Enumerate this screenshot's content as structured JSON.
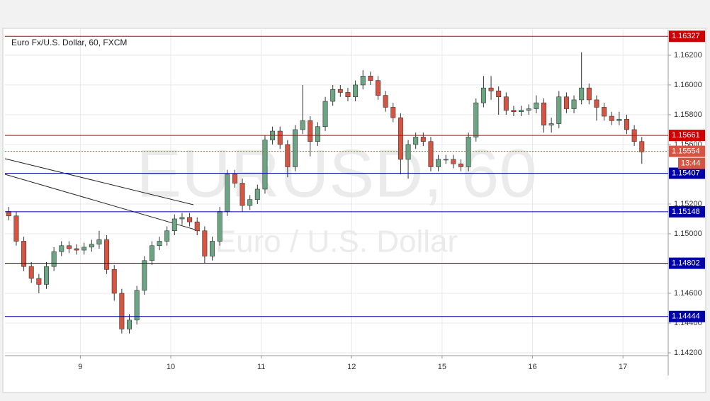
{
  "chart_data": {
    "type": "candlestick",
    "title": "Euro Fx/U.S. Dollar, 60, FXCM",
    "watermark": "EURUSD, 60",
    "watermark_subtitle": "Euro / U.S. Dollar",
    "x": [
      1,
      3,
      5,
      7,
      9,
      11,
      13,
      15,
      17,
      19,
      21,
      23,
      25,
      27,
      29,
      31,
      33,
      35,
      37,
      39,
      41,
      43,
      45,
      47,
      49,
      51,
      53,
      55,
      57,
      59,
      61,
      63,
      65,
      67,
      69,
      71,
      73,
      75,
      77,
      79,
      81,
      83,
      85,
      87,
      89,
      91,
      93,
      95,
      97,
      99,
      101,
      103,
      105,
      107,
      109,
      111,
      113,
      115,
      117,
      119,
      121,
      123,
      125,
      127,
      129,
      131,
      133,
      135,
      137,
      139,
      141,
      143,
      145,
      147,
      149,
      151,
      153,
      155,
      157,
      159,
      161,
      163,
      165,
      167,
      169
    ],
    "open": [
      1.1515,
      1.1512,
      1.1495,
      1.1478,
      1.147,
      1.1466,
      1.1478,
      1.1488,
      1.1492,
      1.149,
      1.1489,
      1.1491,
      1.1493,
      1.1496,
      1.1476,
      1.146,
      1.1436,
      1.1442,
      1.1462,
      1.1482,
      1.1492,
      1.1495,
      1.1502,
      1.151,
      1.1511,
      1.1508,
      1.1502,
      1.1485,
      1.1495,
      1.1515,
      1.154,
      1.1534,
      1.1519,
      1.1523,
      1.153,
      1.1563,
      1.1569,
      1.156,
      1.1545,
      1.157,
      1.1576,
      1.1562,
      1.1572,
      1.1589,
      1.1597,
      1.1595,
      1.1592,
      1.16,
      1.1606,
      1.1603,
      1.1593,
      1.1585,
      1.1578,
      1.155,
      1.156,
      1.1565,
      1.1562,
      1.1545,
      1.155,
      1.155,
      1.1547,
      1.1545,
      1.1565,
      1.1588,
      1.1598,
      1.1596,
      1.1592,
      1.1583,
      1.1582,
      1.1583,
      1.1584,
      1.1588,
      1.1573,
      1.1574,
      1.1592,
      1.1584,
      1.159,
      1.1598,
      1.159,
      1.1585,
      1.1579,
      1.1576,
      1.1577,
      1.157,
      1.1562
    ],
    "high": [
      1.1518,
      1.1515,
      1.1498,
      1.1481,
      1.1473,
      1.1481,
      1.1491,
      1.1495,
      1.1495,
      1.1493,
      1.1494,
      1.1496,
      1.1502,
      1.1499,
      1.1479,
      1.1463,
      1.1446,
      1.1465,
      1.1485,
      1.1495,
      1.1498,
      1.1505,
      1.1513,
      1.1514,
      1.1514,
      1.1511,
      1.1505,
      1.1498,
      1.1518,
      1.1543,
      1.1543,
      1.1537,
      1.1526,
      1.1533,
      1.1566,
      1.1572,
      1.1572,
      1.1563,
      1.1573,
      1.16,
      1.1579,
      1.1575,
      1.1592,
      1.16,
      1.16,
      1.1598,
      1.1603,
      1.161,
      1.1609,
      1.1606,
      1.1596,
      1.1588,
      1.1581,
      1.1563,
      1.1568,
      1.1568,
      1.1565,
      1.1553,
      1.1553,
      1.1553,
      1.155,
      1.1568,
      1.1591,
      1.1606,
      1.1606,
      1.1599,
      1.1595,
      1.1586,
      1.1586,
      1.1587,
      1.1593,
      1.1591,
      1.1578,
      1.1596,
      1.1595,
      1.1593,
      1.1622,
      1.1601,
      1.1593,
      1.1588,
      1.1582,
      1.1582,
      1.158,
      1.1573,
      1.1565
    ],
    "low": [
      1.1509,
      1.1492,
      1.1475,
      1.1467,
      1.146,
      1.1463,
      1.1475,
      1.1485,
      1.1487,
      1.1486,
      1.1486,
      1.1488,
      1.149,
      1.1473,
      1.1455,
      1.1433,
      1.1433,
      1.1439,
      1.1459,
      1.1479,
      1.1489,
      1.1492,
      1.1499,
      1.1506,
      1.1505,
      1.1499,
      1.148,
      1.1482,
      1.1492,
      1.1512,
      1.1531,
      1.1515,
      1.1516,
      1.152,
      1.1527,
      1.156,
      1.1557,
      1.1538,
      1.1542,
      1.1567,
      1.1552,
      1.1559,
      1.1569,
      1.1586,
      1.1592,
      1.1589,
      1.1589,
      1.1597,
      1.16,
      1.159,
      1.1582,
      1.1575,
      1.154,
      1.1537,
      1.1557,
      1.1559,
      1.1542,
      1.1542,
      1.1547,
      1.1544,
      1.1542,
      1.1542,
      1.1562,
      1.1585,
      1.159,
      1.158,
      1.158,
      1.1579,
      1.1579,
      1.158,
      1.1581,
      1.1568,
      1.1568,
      1.1571,
      1.1581,
      1.1581,
      1.1587,
      1.1587,
      1.1576,
      1.1576,
      1.1573,
      1.1573,
      1.1567,
      1.1559,
      1.1547
    ],
    "close": [
      1.1512,
      1.1495,
      1.1478,
      1.147,
      1.1466,
      1.1478,
      1.1488,
      1.1492,
      1.149,
      1.1489,
      1.1491,
      1.1493,
      1.1496,
      1.1476,
      1.146,
      1.1436,
      1.1442,
      1.1462,
      1.1482,
      1.1492,
      1.1495,
      1.1502,
      1.151,
      1.1511,
      1.1508,
      1.1502,
      1.1485,
      1.1495,
      1.1515,
      1.154,
      1.1534,
      1.1519,
      1.1523,
      1.153,
      1.1563,
      1.1569,
      1.156,
      1.1545,
      1.157,
      1.1576,
      1.1562,
      1.1572,
      1.1589,
      1.1597,
      1.1595,
      1.1592,
      1.16,
      1.1606,
      1.1603,
      1.1593,
      1.1585,
      1.1578,
      1.155,
      1.156,
      1.1565,
      1.1562,
      1.1545,
      1.155,
      1.155,
      1.1547,
      1.1545,
      1.1565,
      1.1588,
      1.1598,
      1.1596,
      1.1592,
      1.1583,
      1.1582,
      1.1583,
      1.1584,
      1.1588,
      1.1573,
      1.1574,
      1.1592,
      1.1584,
      1.159,
      1.1598,
      1.159,
      1.1585,
      1.1579,
      1.1576,
      1.1577,
      1.157,
      1.1562,
      1.1555
    ],
    "up_color": "#6ba583",
    "down_color": "#d75442",
    "xlim": [
      0,
      176
    ],
    "xticks": [
      {
        "value": 20,
        "label": "9"
      },
      {
        "value": 44,
        "label": "10"
      },
      {
        "value": 68,
        "label": "11"
      },
      {
        "value": 92,
        "label": "12"
      },
      {
        "value": 116,
        "label": "15"
      },
      {
        "value": 140,
        "label": "16"
      },
      {
        "value": 164,
        "label": "17"
      }
    ],
    "ylim": [
      1.14181,
      1.16371
    ],
    "yticks": [
      {
        "value": 1.142,
        "label": "1.14200"
      },
      {
        "value": 1.144,
        "label": "1.14400"
      },
      {
        "value": 1.146,
        "label": "1.14600"
      },
      {
        "value": 1.15,
        "label": "1.15000"
      },
      {
        "value": 1.152,
        "label": "1.15200"
      },
      {
        "value": 1.156,
        "label": "1.15600"
      },
      {
        "value": 1.158,
        "label": "1.15800"
      },
      {
        "value": 1.16,
        "label": "1.16000"
      },
      {
        "value": 1.162,
        "label": "1.16200"
      }
    ],
    "grid": true,
    "levels": [
      {
        "value": 1.16327,
        "color": "#cc0000"
      },
      {
        "value": 1.15661,
        "color": "#cc0000"
      },
      {
        "value": 1.15407,
        "color": "#0000aa"
      },
      {
        "value": 1.15148,
        "color": "#0000aa"
      },
      {
        "value": 1.14802,
        "color": "#0000aa"
      },
      {
        "value": 1.14444,
        "color": "#0000aa"
      }
    ],
    "last_price": 1.15554,
    "countdown": "13:44"
  }
}
